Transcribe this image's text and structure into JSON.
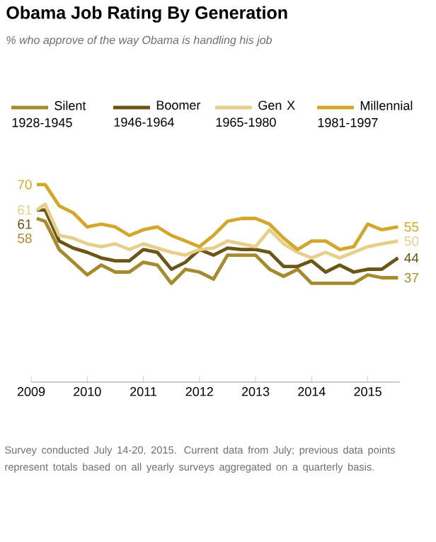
{
  "chart_data": {
    "type": "line",
    "title": "Obama Job Rating By Generation",
    "subtitle": "% who approve of the way Obama is handling his job",
    "x": [
      2009.1,
      2009.25,
      2009.5,
      2009.75,
      2010,
      2010.25,
      2010.5,
      2010.75,
      2011,
      2011.25,
      2011.5,
      2011.75,
      2012,
      2012.25,
      2012.5,
      2012.75,
      2013,
      2013.25,
      2013.5,
      2013.75,
      2014,
      2014.25,
      2014.5,
      2014.75,
      2015,
      2015.25,
      2015.54
    ],
    "series": [
      {
        "name": "Silent 1928-1945",
        "color": "#a58a2e",
        "values": [
          58,
          57,
          47,
          42.5,
          38,
          41.5,
          39,
          39,
          42.5,
          41.5,
          35,
          40,
          39,
          36.5,
          45,
          45,
          45,
          40,
          37.5,
          40,
          35,
          35,
          35,
          35,
          38,
          37,
          37
        ],
        "value_labels": [
          "58",
          null,
          null,
          null,
          null,
          null,
          null,
          null,
          null,
          null,
          null,
          null,
          null,
          null,
          null,
          null,
          null,
          null,
          null,
          null,
          null,
          null,
          null,
          null,
          null,
          null,
          "37"
        ]
      },
      {
        "name": "Boomer 1946-1964",
        "color": "#6b5618",
        "values": [
          61,
          61,
          50,
          47.5,
          46,
          44,
          43,
          43,
          47,
          46,
          40,
          42.5,
          47,
          45,
          47.5,
          47,
          47,
          46,
          41,
          41,
          43,
          39,
          41.5,
          39,
          40,
          40,
          44
        ],
        "value_labels": [
          "61",
          null,
          null,
          null,
          null,
          null,
          null,
          null,
          null,
          null,
          null,
          null,
          null,
          null,
          null,
          null,
          null,
          null,
          null,
          null,
          null,
          null,
          null,
          null,
          null,
          null,
          "44"
        ]
      },
      {
        "name": "Gen X 1965-1980",
        "color": "#e6cf8a",
        "values": [
          61,
          63,
          52,
          51,
          49,
          48,
          49,
          47,
          49,
          47.5,
          46,
          45,
          47,
          47.5,
          50,
          49,
          48,
          54,
          49,
          46,
          44,
          46,
          44,
          46,
          48,
          49,
          50
        ],
        "value_labels": [
          "61",
          null,
          null,
          null,
          null,
          null,
          null,
          null,
          null,
          null,
          null,
          null,
          null,
          null,
          null,
          null,
          null,
          null,
          null,
          null,
          null,
          null,
          null,
          null,
          null,
          null,
          "50"
        ]
      },
      {
        "name": "Millennial 1981-1997",
        "color": "#d4a72c",
        "values": [
          70,
          70,
          62.5,
          60,
          55,
          56,
          55,
          52,
          54,
          55,
          52,
          50,
          48,
          52,
          57,
          58,
          58,
          56,
          51,
          47,
          50,
          50,
          47,
          48,
          56,
          54,
          55
        ],
        "value_labels": [
          "70",
          null,
          null,
          null,
          null,
          null,
          null,
          null,
          null,
          null,
          null,
          null,
          null,
          null,
          null,
          null,
          null,
          null,
          null,
          null,
          null,
          null,
          null,
          null,
          null,
          null,
          "55"
        ]
      }
    ],
    "xlim": [
      2009,
      2015.57
    ],
    "xticks": [
      2009,
      2010,
      2011,
      2012,
      2013,
      2014,
      2015
    ],
    "tick_labels": "x",
    "grid": false,
    "legend": "top",
    "marker": "none",
    "line_style": "solid",
    "annotations": [
      "Survey conducted July 14-20, 2015. Current data from July; previous data points represent totals based on all yearly surveys aggregated on a quarterly basis."
    ]
  }
}
